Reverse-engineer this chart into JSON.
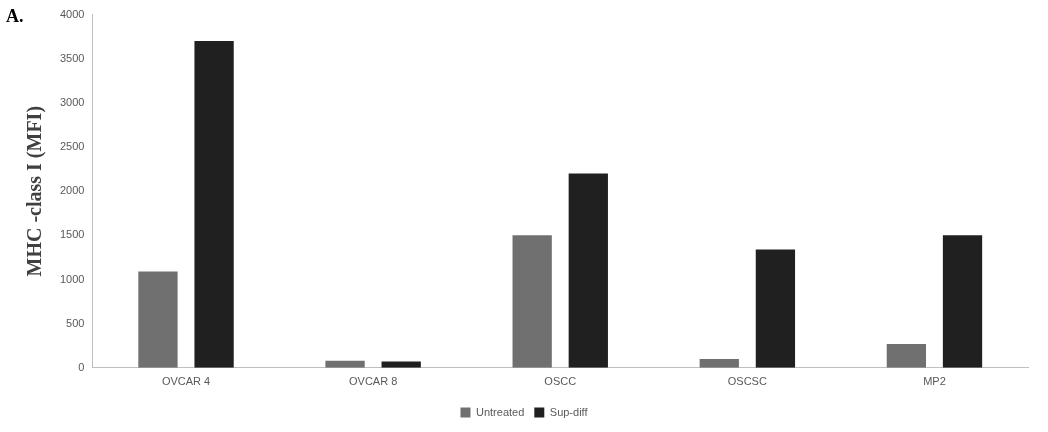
{
  "chart_data": {
    "type": "bar",
    "ylabel": "MHC -class I (MFI)",
    "annotations": [
      "A."
    ],
    "categories": [
      "OVCAR 4",
      "OVCAR 8",
      "OSCC",
      "OSCSC",
      "MP2"
    ],
    "series": [
      {
        "name": "Untreated",
        "color": "#707070",
        "values": [
          1090,
          80,
          1500,
          100,
          270
        ]
      },
      {
        "name": "Sup-diff",
        "color": "#202020",
        "values": [
          3700,
          70,
          2200,
          1340,
          1500
        ]
      }
    ],
    "ylim": [
      0,
      4000
    ],
    "yticks": [
      0,
      500,
      1000,
      1500,
      2000,
      2500,
      3000,
      3500,
      4000
    ],
    "grid": false,
    "legend": "bottom"
  }
}
